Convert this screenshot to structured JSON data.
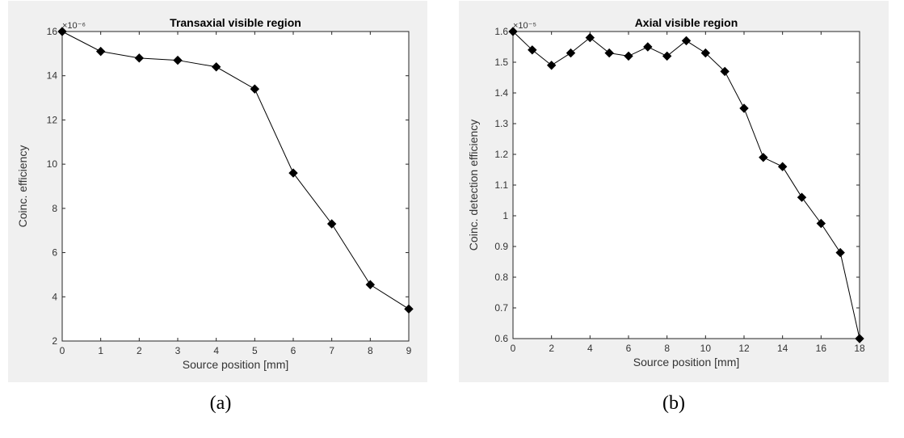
{
  "chart_data": [
    {
      "type": "line",
      "title": "Transaxial visible region",
      "xlabel": "Source position [mm]",
      "ylabel": "Coinc. efficiency",
      "exponent_label": "×10⁻⁶",
      "xlim": [
        0,
        9
      ],
      "ylim": [
        2,
        16
      ],
      "xticks": [
        0,
        1,
        2,
        3,
        4,
        5,
        6,
        7,
        8,
        9
      ],
      "yticks": [
        2,
        4,
        6,
        8,
        10,
        12,
        14,
        16
      ],
      "grid": false,
      "marker": "diamond",
      "color": "#000000",
      "x": [
        0,
        1,
        2,
        3,
        4,
        5,
        6,
        7,
        8,
        9
      ],
      "y": [
        16.0,
        15.1,
        14.8,
        14.7,
        14.4,
        13.4,
        9.6,
        7.3,
        4.55,
        3.45
      ]
    },
    {
      "type": "line",
      "title": "Axial visible region",
      "xlabel": "Source position [mm]",
      "ylabel": "Coinc. detection efficiency",
      "exponent_label": "×10⁻⁵",
      "xlim": [
        0,
        18
      ],
      "ylim": [
        0.6,
        1.6
      ],
      "xticks": [
        0,
        2,
        4,
        6,
        8,
        10,
        12,
        14,
        16,
        18
      ],
      "yticks": [
        0.6,
        0.7,
        0.8,
        0.9,
        1,
        1.1,
        1.2,
        1.3,
        1.4,
        1.5,
        1.6
      ],
      "grid": false,
      "marker": "diamond",
      "color": "#000000",
      "x": [
        0,
        1,
        2,
        3,
        4,
        5,
        6,
        7,
        8,
        9,
        10,
        11,
        12,
        13,
        14,
        15,
        16,
        17,
        18
      ],
      "y": [
        1.6,
        1.54,
        1.49,
        1.53,
        1.58,
        1.53,
        1.52,
        1.55,
        1.52,
        1.57,
        1.53,
        1.47,
        1.35,
        1.19,
        1.16,
        1.06,
        0.975,
        0.88,
        0.6
      ]
    }
  ],
  "captions": [
    "(a)",
    "(b)"
  ]
}
